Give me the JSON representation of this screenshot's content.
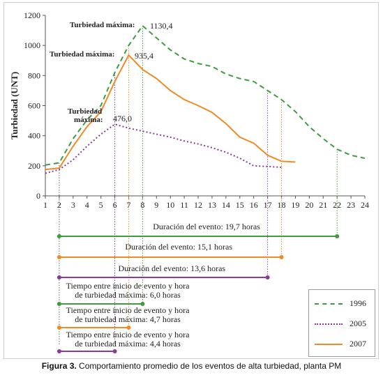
{
  "chart_data": {
    "type": "line",
    "xlabel": "",
    "ylabel": "Turbiedad (UNT)",
    "xlim": [
      1,
      24
    ],
    "ylim": [
      0,
      1200
    ],
    "x_ticks": [
      1,
      2,
      3,
      4,
      5,
      6,
      7,
      8,
      9,
      10,
      11,
      12,
      13,
      14,
      15,
      16,
      17,
      18,
      19,
      20,
      21,
      22,
      23,
      24
    ],
    "y_ticks": [
      0,
      200,
      400,
      600,
      800,
      1000,
      1200
    ],
    "series": [
      {
        "name": "1996",
        "color": "#3f9b3f",
        "style": "dashed",
        "x": [
          1,
          2,
          3,
          4,
          5,
          6,
          7,
          8,
          9,
          10,
          11,
          12,
          13,
          14,
          15,
          16,
          17,
          18,
          19,
          20,
          21,
          22,
          23,
          24
        ],
        "y": [
          205,
          220,
          380,
          505,
          600,
          820,
          1000,
          1130.4,
          1050,
          970,
          910,
          880,
          860,
          810,
          780,
          760,
          700,
          640,
          560,
          460,
          380,
          310,
          270,
          250
        ]
      },
      {
        "name": "2005",
        "color": "#8b3a9a",
        "style": "dotted",
        "x": [
          1,
          2,
          3,
          4,
          5,
          6,
          7,
          8,
          9,
          10,
          11,
          12,
          13,
          14,
          15,
          16,
          17,
          18
        ],
        "y": [
          150,
          175,
          240,
          330,
          410,
          476.0,
          450,
          430,
          410,
          390,
          365,
          345,
          320,
          290,
          250,
          200,
          195,
          190
        ]
      },
      {
        "name": "2007",
        "color": "#f08a24",
        "style": "solid",
        "x": [
          1,
          2,
          3,
          4,
          5,
          6,
          7,
          8,
          9,
          10,
          11,
          12,
          13,
          14,
          15,
          16,
          17,
          18,
          19
        ],
        "y": [
          175,
          185,
          330,
          460,
          560,
          760,
          935.4,
          840,
          780,
          700,
          640,
          600,
          555,
          480,
          390,
          350,
          270,
          230,
          225
        ]
      }
    ],
    "annotations": [
      {
        "label": "Turbiedad máxima:",
        "value": "1130,4",
        "x": 8,
        "y": 1130.4
      },
      {
        "label": "Turbiedad máxima:",
        "value": "935,4",
        "x": 7,
        "y": 935.4
      },
      {
        "label": "Turbiedad\nmáxima:",
        "value": "476,0",
        "x": 6,
        "y": 476.0
      }
    ],
    "durations": [
      {
        "text": "Duración del evento: 19,7 horas",
        "start": 2,
        "end": 22,
        "series": "1996"
      },
      {
        "text": "Duración del evento: 15,1 horas",
        "start": 2,
        "end": 18,
        "series": "2007"
      },
      {
        "text": "Duración del evento: 13,6 horas",
        "start": 2,
        "end": 17,
        "series": "2005"
      }
    ],
    "times_to_peak": [
      {
        "text": "Tiempo entre inicio de evento y hora\nde turbiedad máxima: 6,0 horas",
        "start": 2,
        "end": 8,
        "series": "1996"
      },
      {
        "text": "Tiempo entre inicio de evento y hora\nde turbiedad máxima: 4,7 horas",
        "start": 2,
        "end": 7,
        "series": "2007"
      },
      {
        "text": "Tiempo entre inicio de evento y hora\nde turbiedad máxima: 4,4 horas",
        "start": 2,
        "end": 6,
        "series": "2005"
      }
    ],
    "legend_position": "bottom-right"
  },
  "caption": {
    "prefix": "Figura 3.",
    "text": " Comportamiento promedio de los eventos de alta turbiedad, planta PM"
  }
}
